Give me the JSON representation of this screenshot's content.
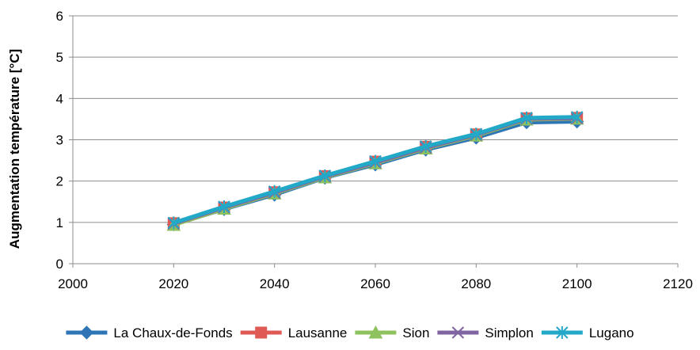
{
  "chart_data": {
    "type": "line",
    "title": "",
    "xlabel": "",
    "ylabel": "Augmentation température [°C]",
    "xlim": [
      2000,
      2120
    ],
    "ylim": [
      0,
      6
    ],
    "x_ticks": [
      2000,
      2020,
      2040,
      2060,
      2080,
      2100,
      2120
    ],
    "y_ticks": [
      0,
      1,
      2,
      3,
      4,
      5,
      6
    ],
    "grid": "horizontal",
    "legend_position": "bottom",
    "x": [
      2020,
      2030,
      2040,
      2050,
      2060,
      2070,
      2080,
      2090,
      2100
    ],
    "series": [
      {
        "name": "La Chaux-de-Fonds",
        "color": "#2e75b6",
        "marker": "diamond",
        "values": [
          0.95,
          1.32,
          1.67,
          2.08,
          2.4,
          2.76,
          3.05,
          3.42,
          3.44
        ]
      },
      {
        "name": "Lausanne",
        "color": "#e05a55",
        "marker": "square",
        "values": [
          0.98,
          1.36,
          1.73,
          2.12,
          2.47,
          2.83,
          3.13,
          3.52,
          3.53
        ]
      },
      {
        "name": "Sion",
        "color": "#8ec25e",
        "marker": "triangle",
        "values": [
          0.94,
          1.33,
          1.7,
          2.09,
          2.43,
          2.79,
          3.1,
          3.49,
          3.51
        ]
      },
      {
        "name": "Simplon",
        "color": "#8064a2",
        "marker": "x",
        "values": [
          0.97,
          1.36,
          1.72,
          2.11,
          2.45,
          2.81,
          3.12,
          3.51,
          3.52
        ]
      },
      {
        "name": "Lugano",
        "color": "#22a9c8",
        "marker": "star",
        "values": [
          0.99,
          1.38,
          1.75,
          2.13,
          2.48,
          2.84,
          3.14,
          3.53,
          3.55
        ]
      }
    ]
  }
}
